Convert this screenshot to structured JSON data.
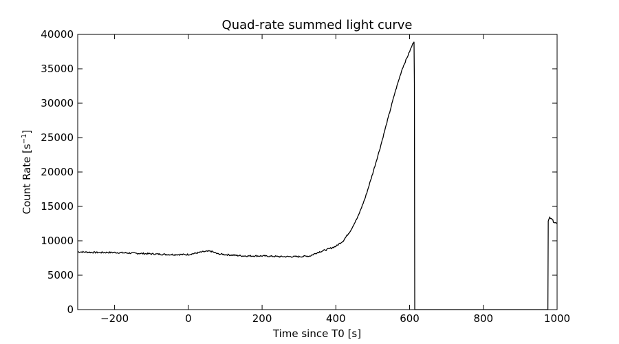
{
  "chart_data": {
    "type": "line",
    "title": "Quad-rate summed light curve",
    "xlabel": "Time since T0 [s]",
    "ylabel_main": "Count Rate [s",
    "ylabel_sup": "−1",
    "ylabel_close": "]",
    "xlim": [
      -300,
      1000
    ],
    "ylim": [
      0,
      40000
    ],
    "xticks": [
      -200,
      0,
      200,
      400,
      600,
      800,
      1000
    ],
    "xtick_labels": [
      "−200",
      "0",
      "200",
      "400",
      "600",
      "800",
      "1000"
    ],
    "yticks": [
      0,
      5000,
      10000,
      15000,
      20000,
      25000,
      30000,
      35000,
      40000
    ],
    "ytick_labels": [
      "0",
      "5000",
      "10000",
      "15000",
      "20000",
      "25000",
      "30000",
      "35000",
      "40000"
    ],
    "grid": false,
    "line_color": "#000000",
    "series": [
      {
        "x": [
          -300,
          -250,
          -200,
          -150,
          -100,
          -50,
          0,
          20,
          40,
          60,
          80,
          100,
          150,
          200,
          250,
          300,
          330,
          350,
          380,
          400,
          420,
          440,
          460,
          480,
          500,
          520,
          540,
          560,
          580,
          600,
          610,
          612,
          613,
          614,
          615,
          620,
          700,
          800,
          900,
          975,
          976,
          980,
          985,
          990,
          1000
        ],
        "y": [
          8400,
          8300,
          8300,
          8200,
          8100,
          8000,
          8000,
          8200,
          8400,
          8500,
          8100,
          8000,
          7800,
          7800,
          7700,
          7700,
          7800,
          8300,
          8800,
          9200,
          10000,
          11500,
          13500,
          16300,
          19800,
          23500,
          27500,
          31500,
          35000,
          37500,
          38800,
          39000,
          33000,
          0,
          0,
          0,
          0,
          0,
          0,
          0,
          12800,
          13400,
          13300,
          12800,
          12500
        ]
      }
    ]
  }
}
